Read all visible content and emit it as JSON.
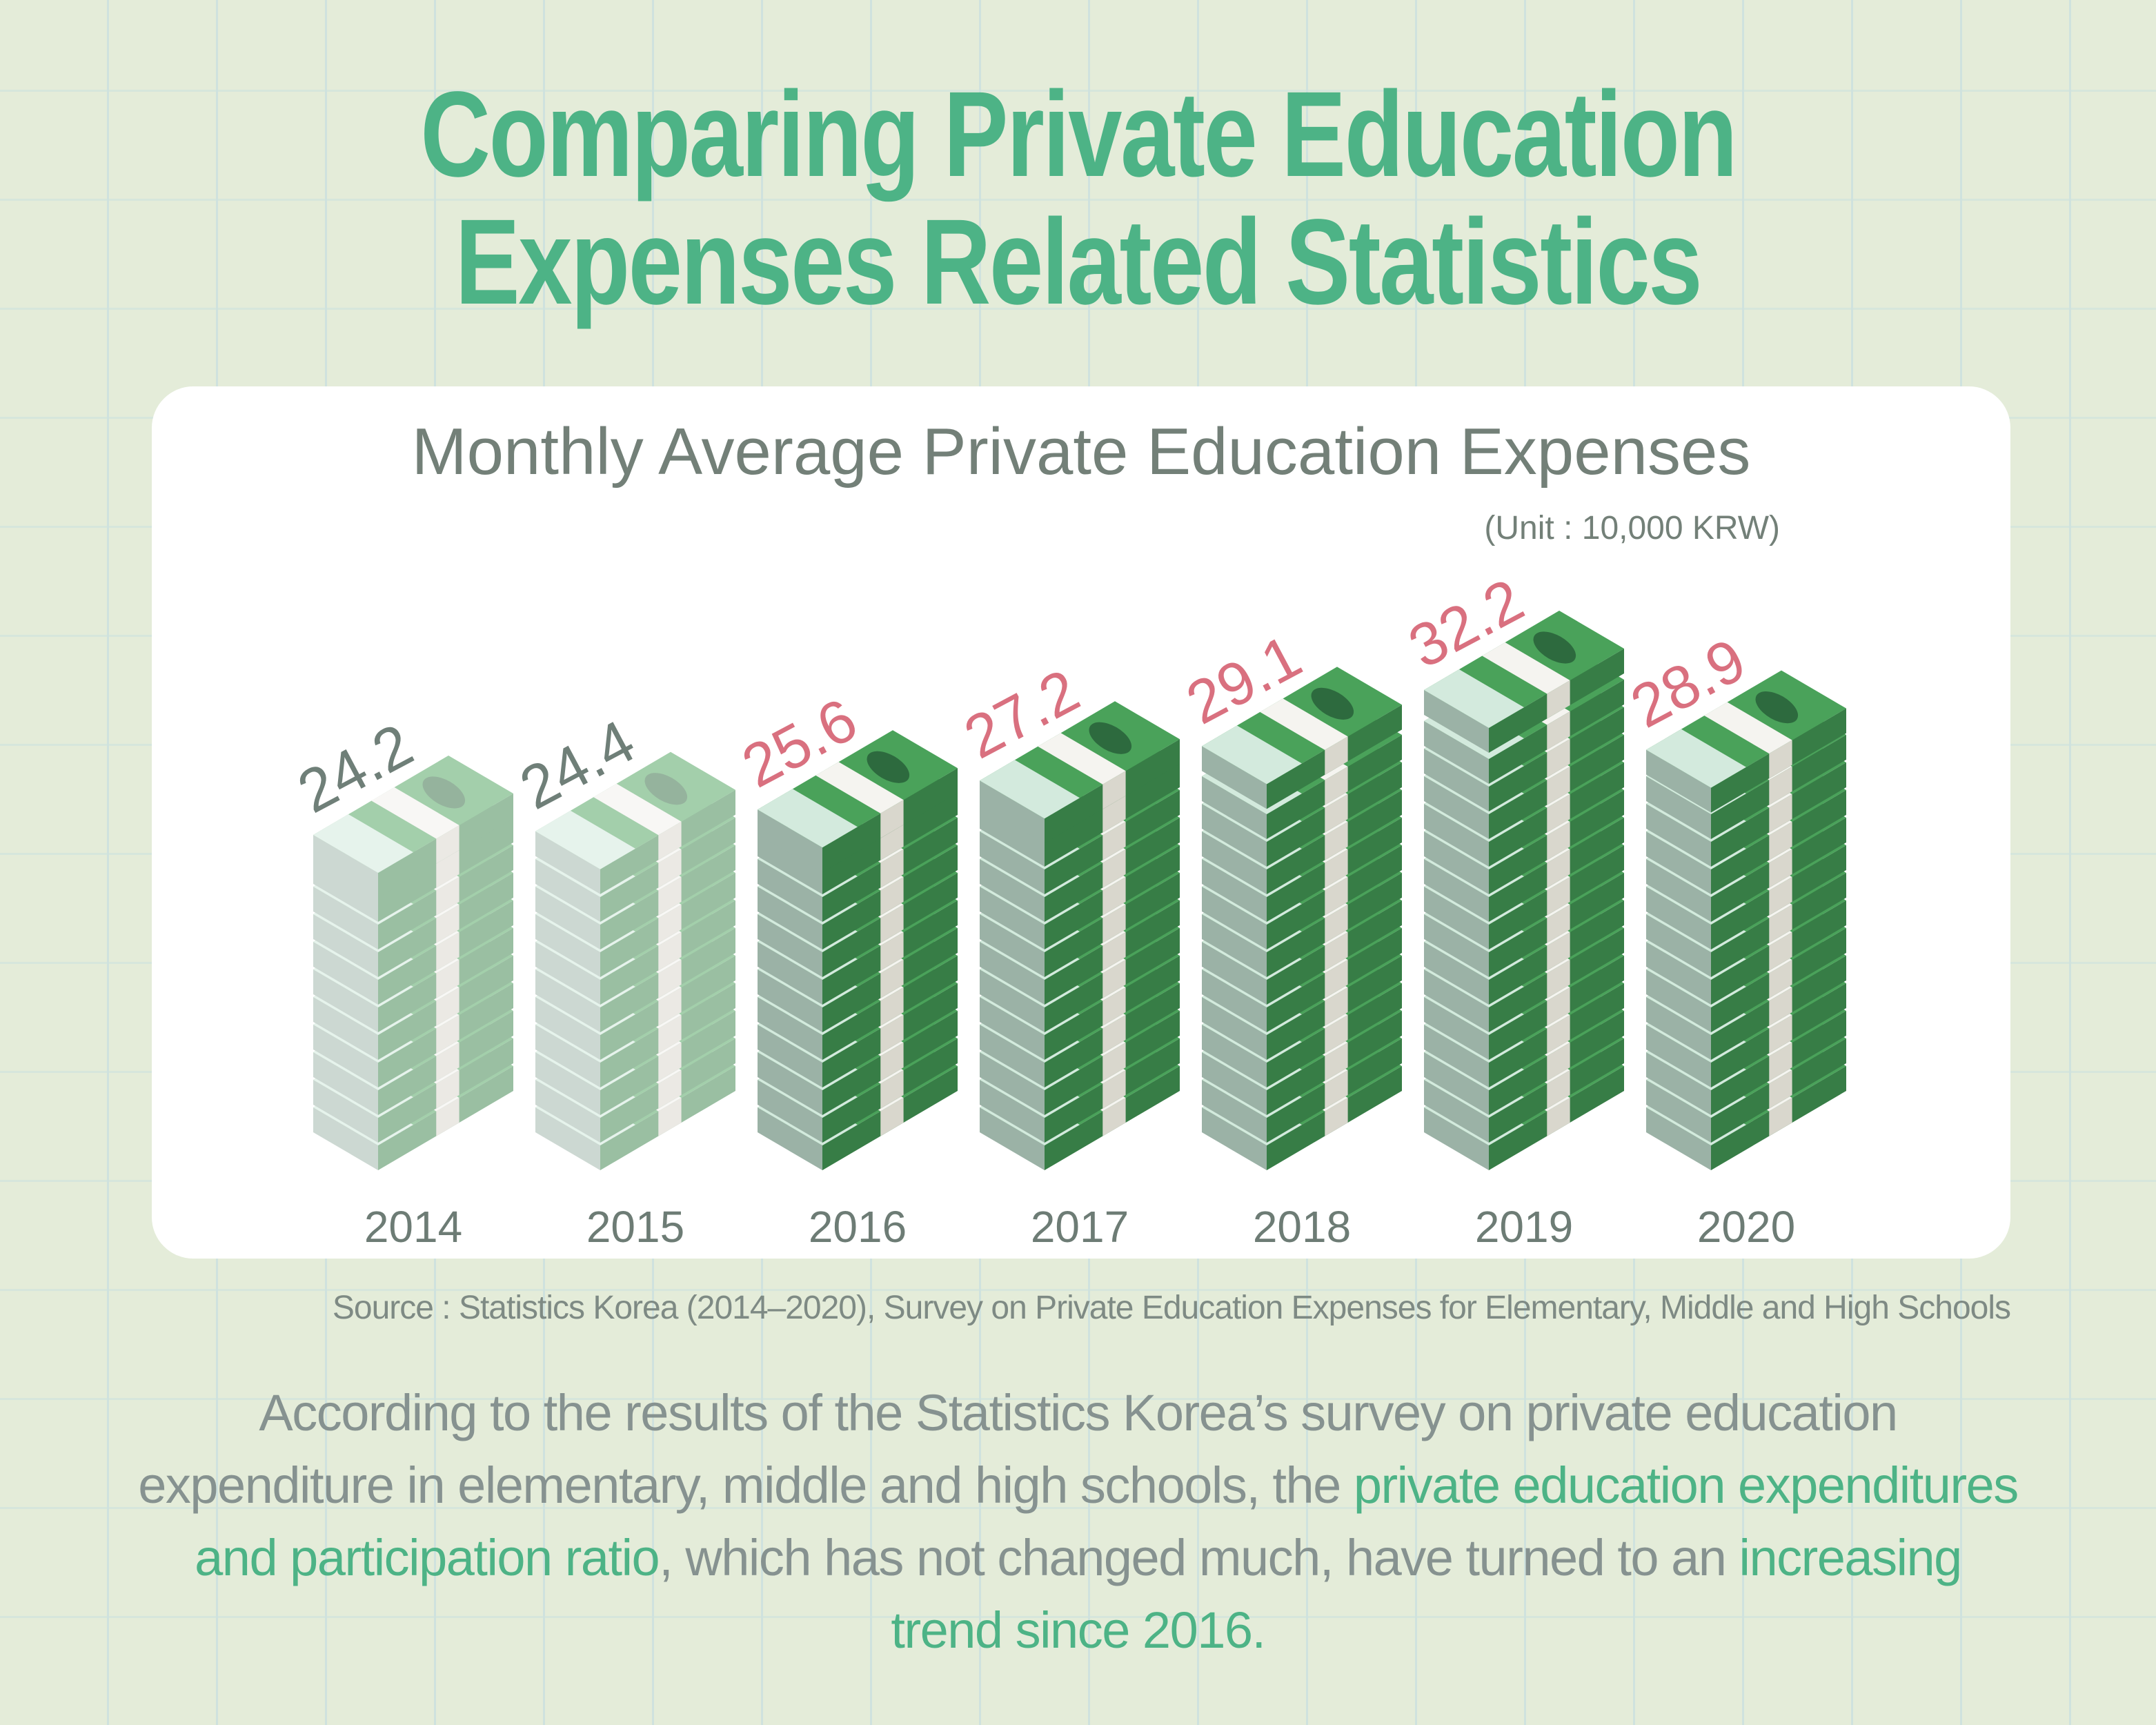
{
  "title": {
    "line1": "Comparing Private Education",
    "line2": "Expenses Related Statistics"
  },
  "chart_data": {
    "type": "bar",
    "title": "Monthly Average Private Education Expenses",
    "unit": "(Unit : 10,000 KRW)",
    "categories": [
      "2014",
      "2015",
      "2016",
      "2017",
      "2018",
      "2019",
      "2020"
    ],
    "values": [
      24.2,
      24.4,
      25.6,
      27.2,
      29.1,
      32.2,
      28.9
    ],
    "value_labels": [
      "24.2",
      "24.4",
      "25.6",
      "27.2",
      "29.1",
      "32.2",
      "28.9"
    ],
    "highlighted_from_index": 2,
    "colors": {
      "label_muted": "#6f7f78",
      "label_highlight": "#d9707f",
      "bill_green": "#4aa25a",
      "bill_muted": "#a3cfab"
    }
  },
  "source": "Source : Statistics Korea (2014–2020), Survey on Private Education Expenses for Elementary, Middle and High Schools",
  "description": {
    "part1": "According to the results of the Statistics Korea’s survey on private education expenditure in elementary, middle and high schools, the ",
    "highlight1": "private education expenditures and participation ratio",
    "part2": ", which has not changed much, have turned to an ",
    "highlight2": "increasing trend since 2016."
  }
}
